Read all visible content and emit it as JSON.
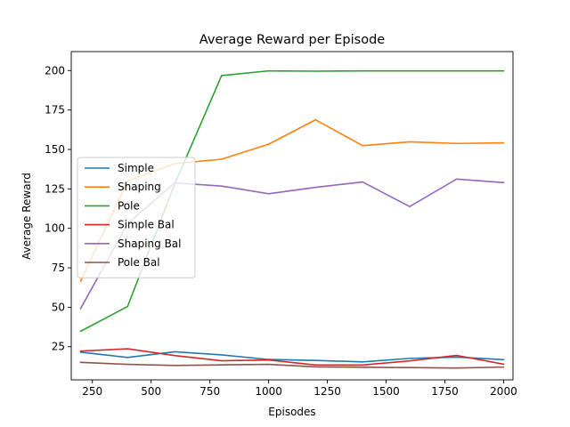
{
  "chart_data": {
    "type": "line",
    "title": "Average Reward per Episode",
    "xlabel": "Episodes",
    "ylabel": "Average Reward",
    "xlim": [
      160,
      2040
    ],
    "ylim": [
      4,
      212
    ],
    "xticks": [
      250,
      500,
      750,
      1000,
      1250,
      1500,
      1750,
      2000
    ],
    "yticks": [
      25,
      50,
      75,
      100,
      125,
      150,
      175,
      200
    ],
    "grid": false,
    "legend_position": "center-left",
    "x": [
      200,
      400,
      600,
      800,
      1000,
      1200,
      1400,
      1600,
      1800,
      2000
    ],
    "series": [
      {
        "name": "Simple",
        "color": "#1f77b4",
        "values": [
          21.5,
          18.2,
          21.8,
          19.8,
          16.9,
          16.3,
          15.4,
          17.6,
          18.4,
          16.8
        ]
      },
      {
        "name": "Shaping",
        "color": "#ff7f0e",
        "values": [
          66.5,
          130.0,
          141.0,
          143.8,
          153.3,
          168.8,
          152.4,
          154.8,
          153.8,
          154.2
        ]
      },
      {
        "name": "Pole",
        "color": "#2ca02c",
        "values": [
          34.8,
          50.5,
          128.0,
          196.8,
          199.8,
          199.6,
          199.8,
          199.8,
          199.8,
          199.8
        ]
      },
      {
        "name": "Simple Bal",
        "color": "#d62728",
        "values": [
          22.2,
          23.7,
          19.4,
          16.1,
          16.6,
          13.4,
          13.4,
          16.0,
          19.5,
          13.9
        ]
      },
      {
        "name": "Shaping Bal",
        "color": "#9467bd",
        "values": [
          49.2,
          103.0,
          128.8,
          126.8,
          121.9,
          126.0,
          129.4,
          113.8,
          131.2,
          129.0
        ]
      },
      {
        "name": "Pole Bal",
        "color": "#8c564b",
        "values": [
          15.1,
          13.8,
          13.1,
          13.5,
          13.8,
          12.2,
          12.0,
          11.8,
          11.5,
          12.1
        ]
      }
    ]
  }
}
